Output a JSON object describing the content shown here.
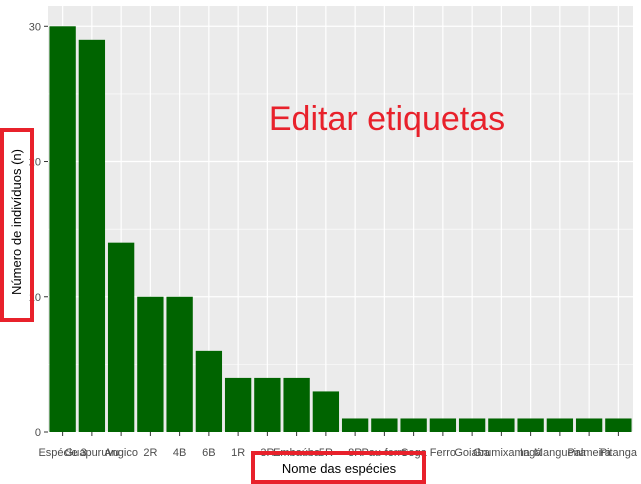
{
  "chart_data": {
    "type": "bar",
    "categories": [
      "Espécie 3",
      "Guapuruvu",
      "Angico",
      "2R",
      "4B",
      "6B",
      "1R",
      "3R",
      "Embaúba",
      "5R",
      "8R",
      "Pau-ferro",
      "Cega",
      "Ferro",
      "Goiaba",
      "Grumixama",
      "Ingá",
      "Mangueira",
      "Palmeira",
      "Pitanga"
    ],
    "tick_labels": [
      "Espécie 3",
      "Guapuruvu",
      "Angico",
      "2R",
      "4B",
      "6B",
      "1R",
      "3R",
      "Embaúba",
      "5R",
      "8R",
      "Pau-ferro",
      "Cega",
      "Ferro",
      "Goiaba",
      "Grumixama",
      "Ingá",
      "Mangueira",
      "Palmeira",
      "Pitanga"
    ],
    "values": [
      30,
      29,
      14,
      10,
      10,
      6,
      4,
      4,
      4,
      3,
      1,
      1,
      1,
      1,
      1,
      1,
      1,
      1,
      1,
      1
    ],
    "xlabel": "Nome das espécies",
    "ylabel": "Número de indivíduos (n)",
    "ylim": [
      0,
      31.5
    ],
    "yticks": [
      0,
      10,
      20,
      30
    ],
    "grid": true,
    "bar_color": "#006400",
    "panel_color": "#ebebeb"
  },
  "overlay_text": "Editar etiquetas",
  "highlight_color": "#e8212b"
}
